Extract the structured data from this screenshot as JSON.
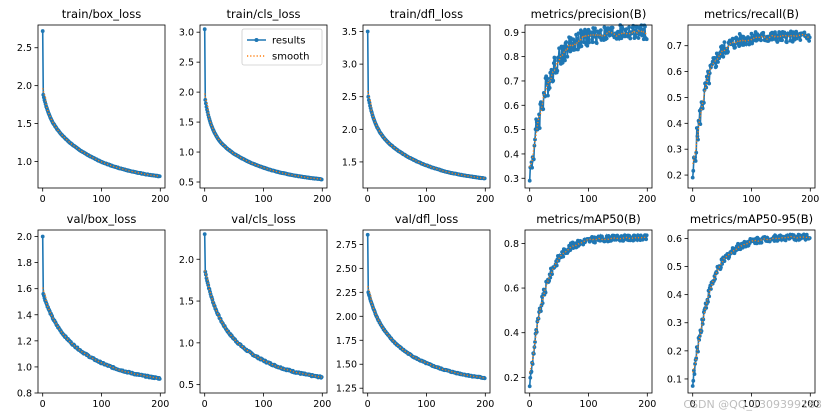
{
  "figure": {
    "watermark": "CSDN @QQ_1309399183"
  },
  "legend": {
    "results_label": "results",
    "smooth_label": "smooth"
  },
  "colors": {
    "results": "#1f77b4",
    "smooth": "#ff7f0e"
  },
  "chart_data": [
    {
      "type": "line",
      "title": "train/box_loss",
      "xlim": [
        -8,
        208
      ],
      "ylim": [
        0.65,
        2.8
      ],
      "xticks": [
        0,
        100,
        200
      ],
      "yticks": [
        1.0,
        1.5,
        2.0,
        2.5
      ],
      "yfmt": 1,
      "start": 2.72,
      "second": 1.88,
      "end": 0.72,
      "k": 0.1,
      "drop": 0.22,
      "noise": 0.004,
      "seed": 1
    },
    {
      "type": "line",
      "title": "train/cls_loss",
      "xlim": [
        -8,
        208
      ],
      "ylim": [
        0.4,
        3.12
      ],
      "xticks": [
        0,
        100,
        200
      ],
      "yticks": [
        0.5,
        1.0,
        1.5,
        2.0,
        2.5,
        3.0
      ],
      "yfmt": 1,
      "start": 3.05,
      "second": 1.87,
      "end": 0.46,
      "k": 0.1,
      "drop": 0.35,
      "noise": 0.004,
      "seed": 2,
      "legend": true
    },
    {
      "type": "line",
      "title": "train/dfl_loss",
      "xlim": [
        -8,
        208
      ],
      "ylim": [
        1.1,
        3.6
      ],
      "xticks": [
        0,
        100,
        200
      ],
      "yticks": [
        1.5,
        2.0,
        2.5,
        3.0,
        3.5
      ],
      "yfmt": 1,
      "start": 3.5,
      "second": 2.5,
      "end": 1.16,
      "k": 0.1,
      "drop": 0.3,
      "noise": 0.004,
      "seed": 3
    },
    {
      "type": "line",
      "title": "metrics/precision(B)",
      "xlim": [
        -8,
        208
      ],
      "ylim": [
        0.26,
        0.93
      ],
      "xticks": [
        0,
        100,
        200
      ],
      "yticks": [
        0.3,
        0.4,
        0.5,
        0.6,
        0.7,
        0.8,
        0.9
      ],
      "yfmt": 1,
      "start": 0.29,
      "end": 0.9,
      "k": 0.035,
      "noise": 0.03,
      "seed": 4,
      "increasing": true
    },
    {
      "type": "line",
      "title": "metrics/recall(B)",
      "xlim": [
        -8,
        208
      ],
      "ylim": [
        0.15,
        0.78
      ],
      "xticks": [
        0,
        100,
        200
      ],
      "yticks": [
        0.2,
        0.3,
        0.4,
        0.5,
        0.6,
        0.7
      ],
      "yfmt": 1,
      "start": 0.19,
      "end": 0.735,
      "k": 0.045,
      "noise": 0.02,
      "seed": 5,
      "increasing": true
    },
    {
      "type": "line",
      "title": "val/box_loss",
      "xlim": [
        -8,
        208
      ],
      "ylim": [
        0.8,
        2.05
      ],
      "xticks": [
        0,
        100,
        200
      ],
      "yticks": [
        0.8,
        1.0,
        1.2,
        1.4,
        1.6,
        1.8,
        2.0
      ],
      "yfmt": 1,
      "start": 2.0,
      "second": 1.56,
      "end": 0.86,
      "k": 0.06,
      "drop": 0.2,
      "noise": 0.006,
      "seed": 6
    },
    {
      "type": "line",
      "title": "val/cls_loss",
      "xlim": [
        -8,
        208
      ],
      "ylim": [
        0.4,
        2.35
      ],
      "xticks": [
        0,
        100,
        200
      ],
      "yticks": [
        0.5,
        1.0,
        1.5,
        2.0
      ],
      "yfmt": 1,
      "start": 2.3,
      "second": 1.85,
      "end": 0.5,
      "k": 0.06,
      "drop": 0.3,
      "noise": 0.01,
      "seed": 7
    },
    {
      "type": "line",
      "title": "val/dfl_loss",
      "xlim": [
        -8,
        208
      ],
      "ylim": [
        1.2,
        2.9
      ],
      "xticks": [
        0,
        100,
        200
      ],
      "yticks": [
        1.25,
        1.5,
        1.75,
        2.0,
        2.25,
        2.5,
        2.75
      ],
      "yfmt": 2,
      "start": 2.85,
      "second": 2.25,
      "end": 1.29,
      "k": 0.06,
      "drop": 0.25,
      "noise": 0.006,
      "seed": 8
    },
    {
      "type": "line",
      "title": "metrics/mAP50(B)",
      "xlim": [
        -8,
        208
      ],
      "ylim": [
        0.13,
        0.86
      ],
      "xticks": [
        0,
        100,
        200
      ],
      "yticks": [
        0.2,
        0.4,
        0.6,
        0.8
      ],
      "yfmt": 1,
      "start": 0.16,
      "end": 0.825,
      "k": 0.04,
      "noise": 0.012,
      "seed": 9,
      "increasing": true
    },
    {
      "type": "line",
      "title": "metrics/mAP50-95(B)",
      "xlim": [
        -8,
        208
      ],
      "ylim": [
        0.05,
        0.63
      ],
      "xticks": [
        0,
        100,
        200
      ],
      "yticks": [
        0.1,
        0.2,
        0.3,
        0.4,
        0.5,
        0.6
      ],
      "yfmt": 1,
      "start": 0.075,
      "end": 0.605,
      "k": 0.035,
      "noise": 0.01,
      "seed": 10,
      "increasing": true
    }
  ]
}
